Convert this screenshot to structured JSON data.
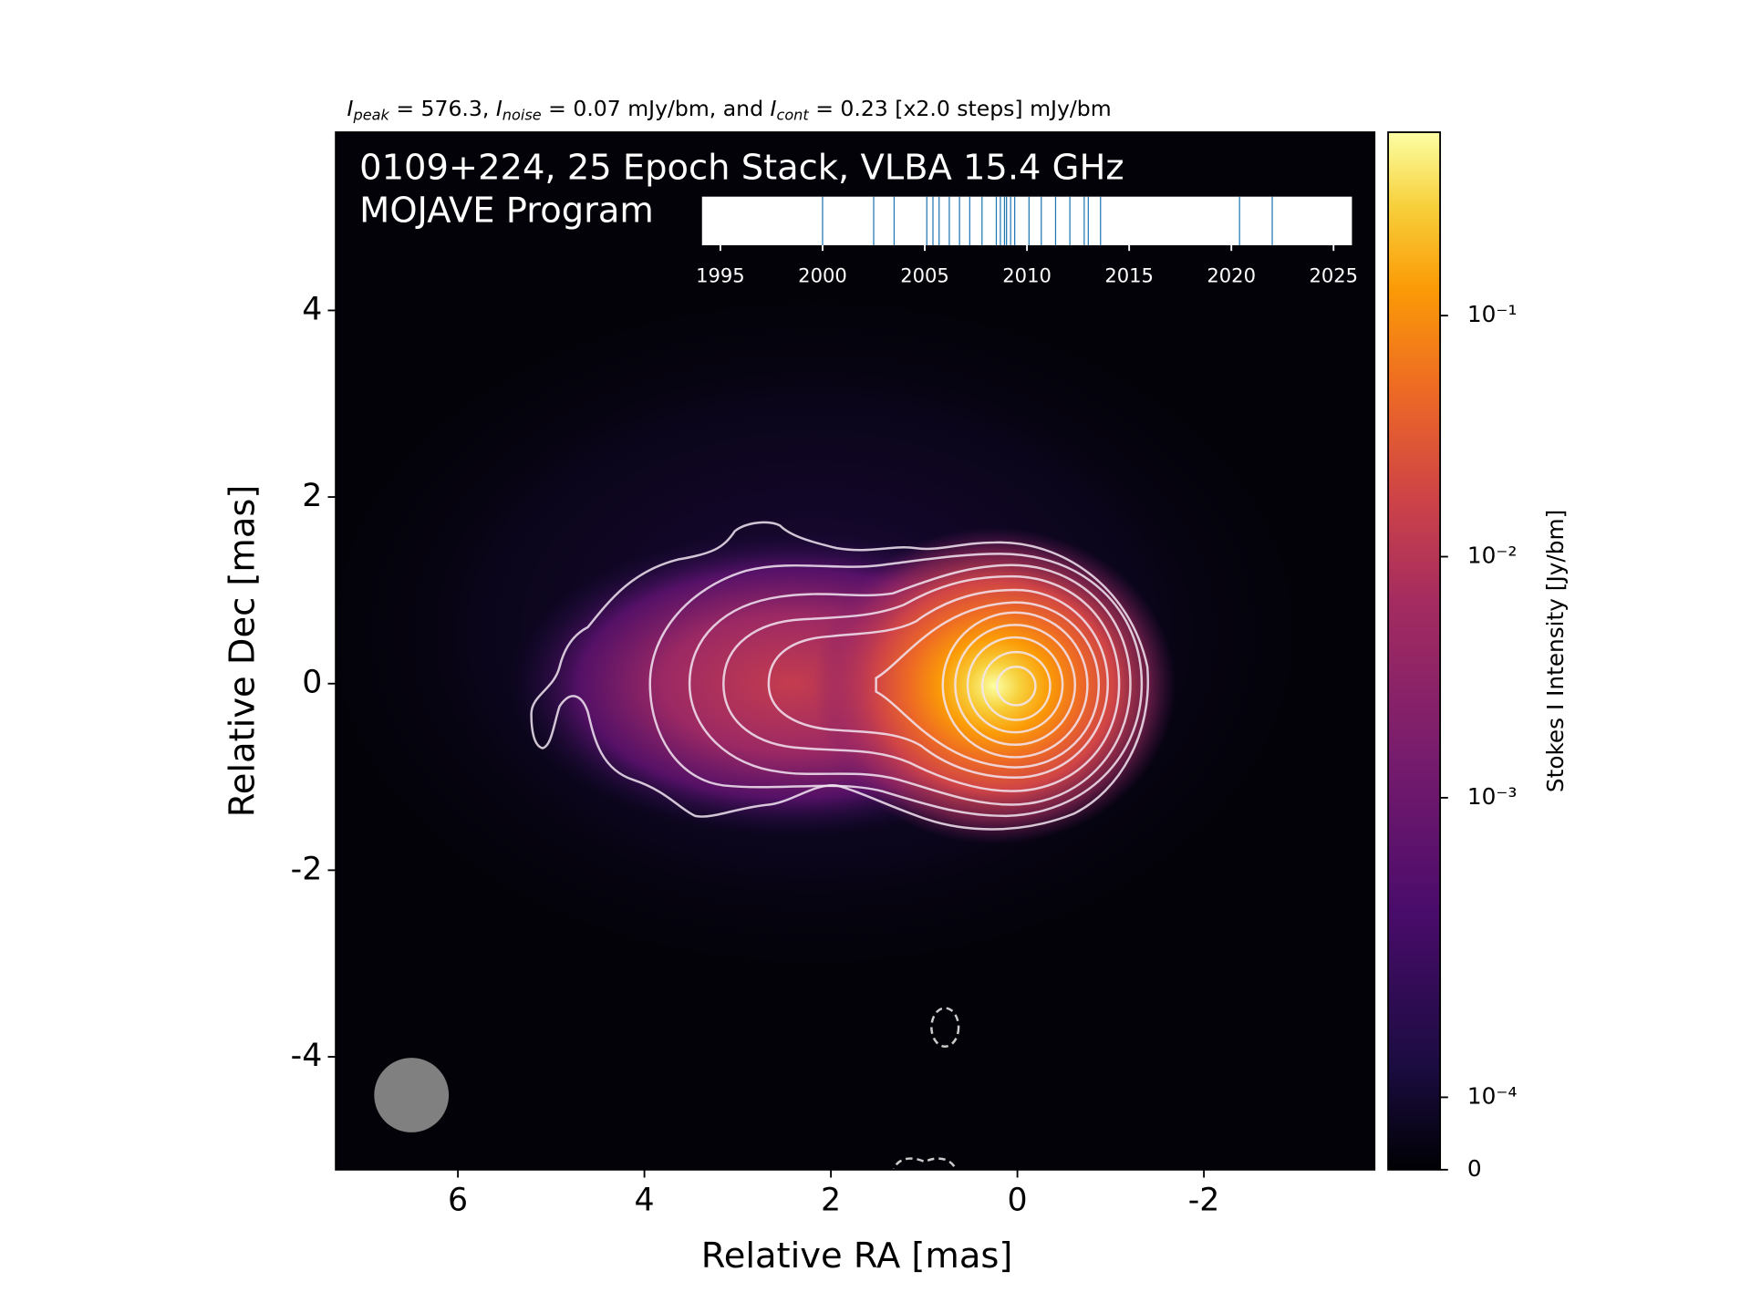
{
  "chart_data": {
    "type": "image",
    "title": [
      "I",
      "peak",
      " = 576.3, ",
      "I",
      "noise",
      " = 0.07 mJy/bm, and ",
      "I",
      "cont",
      " = 0.23 [x2.0 steps] mJy/bm"
    ],
    "annotation": [
      "0109+224, 25 Epoch Stack, VLBA 15.4 GHz",
      "MOJAVE Program"
    ],
    "xlabel": "Relative RA [mas]",
    "ylabel": "Relative Dec [mas]",
    "xlim": [
      7.31,
      -3.83
    ],
    "xticks": [
      6,
      4,
      2,
      0,
      -2
    ],
    "ylim": [
      -5.21,
      5.91
    ],
    "yticks": [
      -4,
      -2,
      0,
      2,
      4
    ],
    "colorbar": {
      "label": "Stokes I Intensity [Jy/bm]",
      "clim": [
        0,
        0.5763
      ],
      "scale": "symlog",
      "linthresh": 0.00037,
      "ticks": [
        0,
        {
          "value": 0.0001,
          "label": "10⁻⁴"
        },
        {
          "value": 0.001,
          "label": "10⁻³"
        },
        {
          "value": 0.01,
          "label": "10⁻²"
        },
        {
          "value": 0.1,
          "label": "10⁻¹"
        }
      ]
    },
    "epochs": {
      "x": [
        2000.0,
        2002.5,
        2003.5,
        2005.1,
        2005.4,
        2005.7,
        2006.2,
        2006.7,
        2007.2,
        2007.8,
        2008.5,
        2008.7,
        2008.9,
        2009.0,
        2009.2,
        2009.4,
        2010.1,
        2010.7,
        2011.4,
        2012.1,
        2012.8,
        2013.0,
        2013.6,
        2020.4,
        2022.0
      ],
      "xlim": [
        1994.1,
        2025.9
      ],
      "xticks": [
        1995,
        2000,
        2005,
        2010,
        2015,
        2020,
        2025
      ],
      "color": "#1f77b4"
    }
  }
}
